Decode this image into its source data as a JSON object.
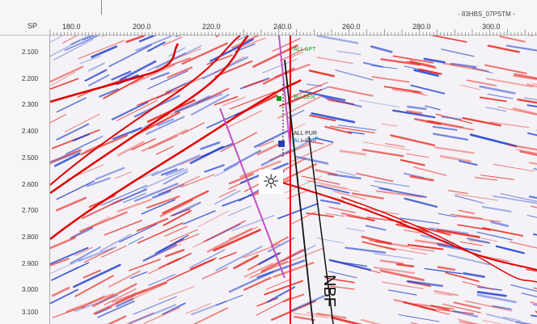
{
  "axes": {
    "sp_label": "SP",
    "x_ticks": [
      {
        "label": "180.0",
        "value": 180
      },
      {
        "label": "200.0",
        "value": 200
      },
      {
        "label": "220.0",
        "value": 220
      },
      {
        "label": "240.0",
        "value": 240
      },
      {
        "label": "260.0",
        "value": 260
      },
      {
        "label": "280.0",
        "value": 280
      },
      {
        "label": "300.0",
        "value": 300
      }
    ],
    "y_ticks": [
      {
        "label": "2.100",
        "value": 2.1
      },
      {
        "label": "2.200",
        "value": 2.2
      },
      {
        "label": "2.300",
        "value": 2.3
      },
      {
        "label": "2.400",
        "value": 2.4
      },
      {
        "label": "2.500",
        "value": 2.5
      },
      {
        "label": "2.600",
        "value": 2.6
      },
      {
        "label": "2.700",
        "value": 2.7
      },
      {
        "label": "2.800",
        "value": 2.8
      },
      {
        "label": "2.900",
        "value": 2.9
      },
      {
        "label": "3.000",
        "value": 3.0
      },
      {
        "label": "3.100",
        "value": 3.1
      }
    ]
  },
  "seismic_line_name": "- 83HBS_07PSTM -",
  "well_tops": {
    "top1": "ALL APT",
    "top2": "BU CEN",
    "top3": "ALL PUR",
    "top4": "ALL BAR"
  },
  "annotation": {
    "fault_label": "NBF",
    "sun_symbol": "☼"
  },
  "colors": {
    "peak": "#e8231a",
    "trough": "#2040d0",
    "background": "#f4f2f6",
    "horizon": "#e00000",
    "well_track": "#c050c0",
    "well_label_green": "#1a9a1a",
    "well_label_blue": "#2a70c0"
  }
}
